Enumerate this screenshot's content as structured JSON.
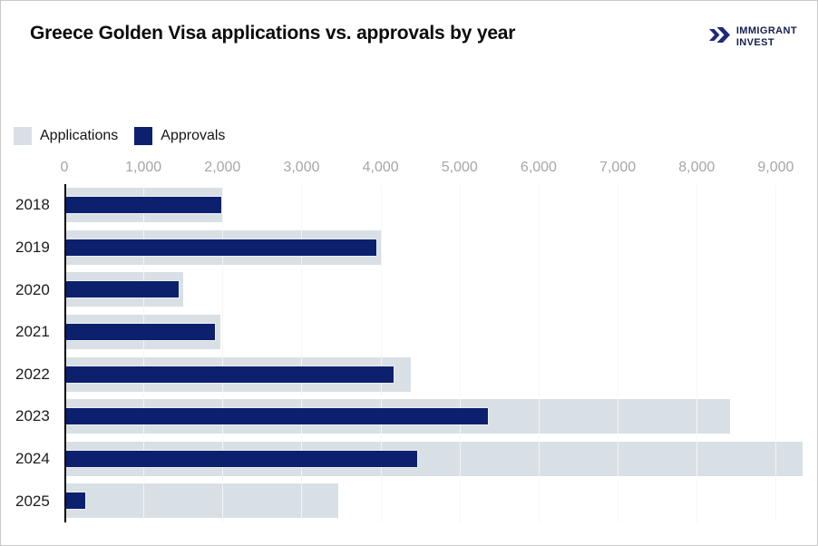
{
  "header": {
    "title": "Greece Golden Visa applications vs. approvals by year",
    "logo": {
      "line1": "IMMIGRANT",
      "line2": "INVEST",
      "icon": "double-chevron-right",
      "color": "#1e2a78"
    }
  },
  "legend": {
    "items": [
      {
        "label": "Applications",
        "color": "#d9e0e5"
      },
      {
        "label": "Approvals",
        "color": "#0c206e"
      }
    ]
  },
  "chart_data": {
    "type": "bar",
    "orientation": "horizontal",
    "title": "Greece Golden Visa applications vs. approvals by year",
    "categories": [
      "2018",
      "2019",
      "2020",
      "2021",
      "2022",
      "2023",
      "2024",
      "2025"
    ],
    "series": [
      {
        "name": "Applications",
        "color": "#d9e0e5",
        "values": [
          2000,
          4020,
          1500,
          1970,
          4380,
          8420,
          9340,
          3460
        ]
      },
      {
        "name": "Approvals",
        "color": "#0c206e",
        "values": [
          1980,
          3950,
          1450,
          1910,
          4170,
          5360,
          4460,
          260
        ]
      }
    ],
    "x_ticks": [
      "0",
      "1,000",
      "2,000",
      "3,000",
      "4,000",
      "5,000",
      "6,000",
      "7,000",
      "8,000",
      "9,000"
    ],
    "x_tick_values": [
      0,
      1000,
      2000,
      3000,
      4000,
      5000,
      6000,
      7000,
      8000,
      9000
    ],
    "xlim": [
      0,
      9500
    ],
    "grid": true,
    "legend_position": "top-left",
    "colors": {
      "axis_line": "#000000",
      "gridline": "#e8e8e8",
      "tick_label": "#a6a6a6",
      "year_label": "#1c1c1c"
    }
  }
}
